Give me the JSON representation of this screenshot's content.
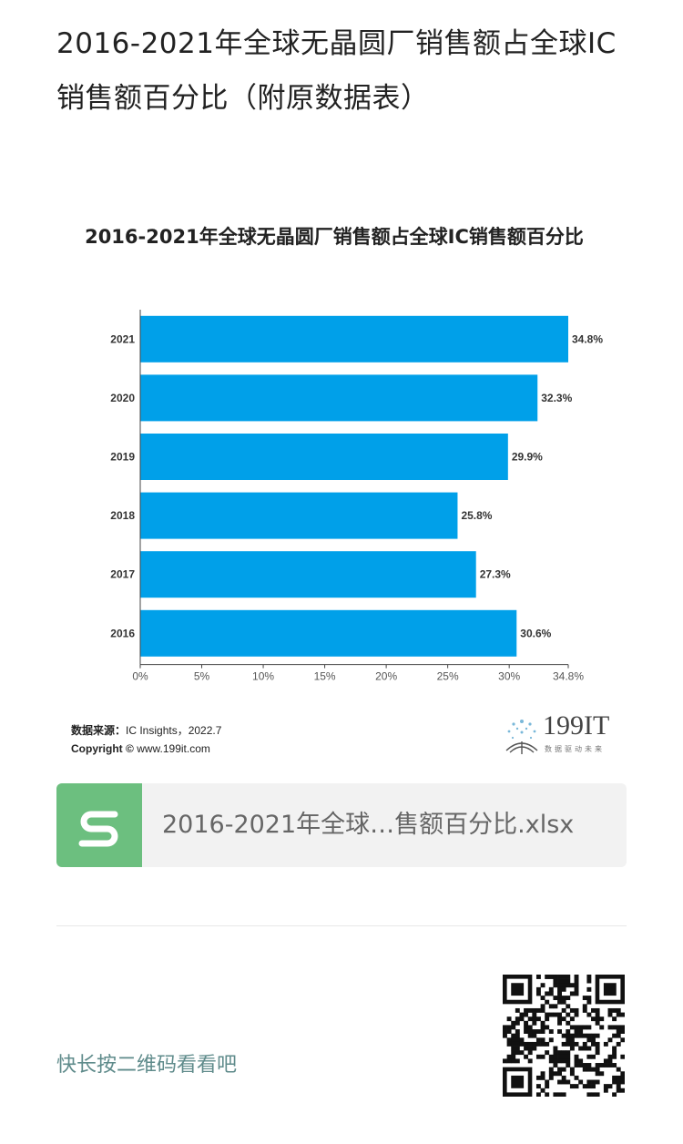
{
  "page": {
    "title": "2016-2021年全球无晶圆厂销售额占全球IC销售额百分比（附原数据表）"
  },
  "chart_data": {
    "type": "bar",
    "orientation": "horizontal",
    "title": "2016-2021年全球无晶圆厂销售额占全球IC销售额百分比",
    "categories": [
      "2021",
      "2020",
      "2019",
      "2018",
      "2017",
      "2016"
    ],
    "values": [
      34.8,
      32.3,
      29.9,
      25.8,
      27.3,
      30.6
    ],
    "value_labels": [
      "34.8%",
      "32.3%",
      "29.9%",
      "25.8%",
      "27.3%",
      "30.6%"
    ],
    "x_ticks": [
      "0%",
      "5%",
      "10%",
      "15%",
      "20%",
      "25%",
      "30%",
      "34.8%"
    ],
    "x_tick_values": [
      0,
      5,
      10,
      15,
      20,
      25,
      30,
      34.8
    ],
    "xlim": [
      0,
      34.8
    ],
    "xlabel": "",
    "ylabel": "",
    "grid": false,
    "bar_color": "#00a0e9"
  },
  "source": {
    "label": "数据来源：",
    "value": "IC Insights，2022.7",
    "copyright_label": "Copyright ©",
    "copyright_value": "www.199it.com"
  },
  "logo": {
    "text": "199IT",
    "tagline": "数据驱动未来"
  },
  "attachment": {
    "icon": "spreadsheet-s-icon",
    "filename": "2016-2021年全球…售额百分比.xlsx",
    "icon_color": "#6cbf7f"
  },
  "qr": {
    "hint": "快长按二维码看看吧",
    "icon": "qr-code-icon"
  }
}
